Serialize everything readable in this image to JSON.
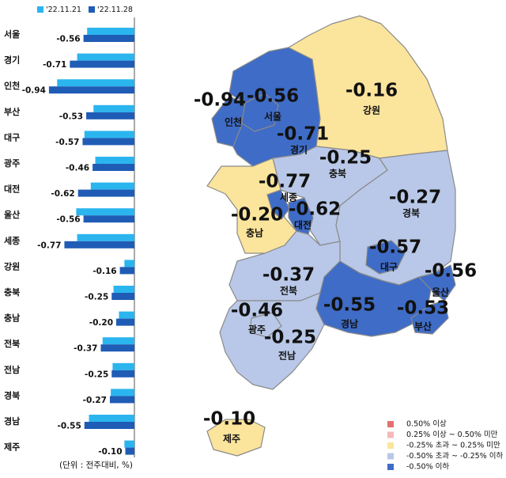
{
  "chart_data": [
    {
      "type": "hbar",
      "categories": [
        "서울",
        "경기",
        "인천",
        "부산",
        "대구",
        "광주",
        "대전",
        "울산",
        "세종",
        "강원",
        "충북",
        "충남",
        "전북",
        "전남",
        "경북",
        "경남",
        "제주"
      ],
      "series": [
        {
          "name": "'22.11.21",
          "color": "#2bb5ef",
          "values": [
            -0.52,
            -0.63,
            -0.85,
            -0.45,
            -0.55,
            -0.43,
            -0.48,
            -0.64,
            -0.63,
            -0.11,
            -0.23,
            -0.17,
            -0.35,
            -0.24,
            -0.26,
            -0.5,
            -0.11
          ]
        },
        {
          "name": "'22.11.28",
          "color": "#1f5cb5",
          "values": [
            -0.56,
            -0.71,
            -0.94,
            -0.53,
            -0.57,
            -0.46,
            -0.62,
            -0.56,
            -0.77,
            -0.16,
            -0.25,
            -0.2,
            -0.37,
            -0.25,
            -0.27,
            -0.55,
            -0.1
          ],
          "value_labels": [
            "-0.56",
            "-0.71",
            "-0.94",
            "-0.53",
            "-0.57",
            "-0.46",
            "-0.62",
            "-0.56",
            "-0.77",
            "-0.16",
            "-0.25",
            "-0.20",
            "-0.37",
            "-0.25",
            "-0.27",
            "-0.55",
            "-0.10"
          ]
        }
      ],
      "note": "(단위 : 전주대비, %)"
    },
    {
      "type": "map",
      "regions": [
        "서울",
        "경기",
        "인천",
        "부산",
        "대구",
        "광주",
        "대전",
        "울산",
        "세종",
        "강원",
        "충북",
        "충남",
        "전북",
        "전남",
        "경북",
        "경남",
        "제주"
      ],
      "values": [
        -0.56,
        -0.71,
        -0.94,
        -0.53,
        -0.57,
        -0.46,
        -0.62,
        -0.56,
        -0.77,
        -0.16,
        -0.25,
        -0.2,
        -0.37,
        -0.25,
        -0.27,
        -0.55,
        -0.1
      ],
      "value_labels": [
        "-0.56",
        "-0.71",
        "-0.94",
        "-0.53",
        "-0.57",
        "-0.46",
        "-0.62",
        "-0.56",
        "-0.77",
        "-0.16",
        "-0.25",
        "-0.20",
        "-0.37",
        "-0.25",
        "-0.27",
        "-0.55",
        "-0.10"
      ],
      "colors": [
        "#3f6cc6",
        "#3f6cc6",
        "#3f6cc6",
        "#3f6cc6",
        "#3f6cc6",
        "#b9c8e8",
        "#3f6cc6",
        "#3f6cc6",
        "#3f6cc6",
        "#fbe49c",
        "#b9c8e8",
        "#fbe49c",
        "#b9c8e8",
        "#b9c8e8",
        "#b9c8e8",
        "#3f6cc6",
        "#fbe49c"
      ],
      "legend": [
        {
          "label": "0.50% 이상",
          "color": "#e37070"
        },
        {
          "label": "0.25% 이상 ~ 0.50% 미만",
          "color": "#f4b9b9"
        },
        {
          "label": "-0.25% 초과 ~ 0.25% 미만",
          "color": "#fbe49c"
        },
        {
          "label": "-0.50% 초과 ~ -0.25% 이하",
          "color": "#b9c8e8"
        },
        {
          "label": "-0.50% 이하",
          "color": "#3f6cc6"
        }
      ]
    }
  ]
}
